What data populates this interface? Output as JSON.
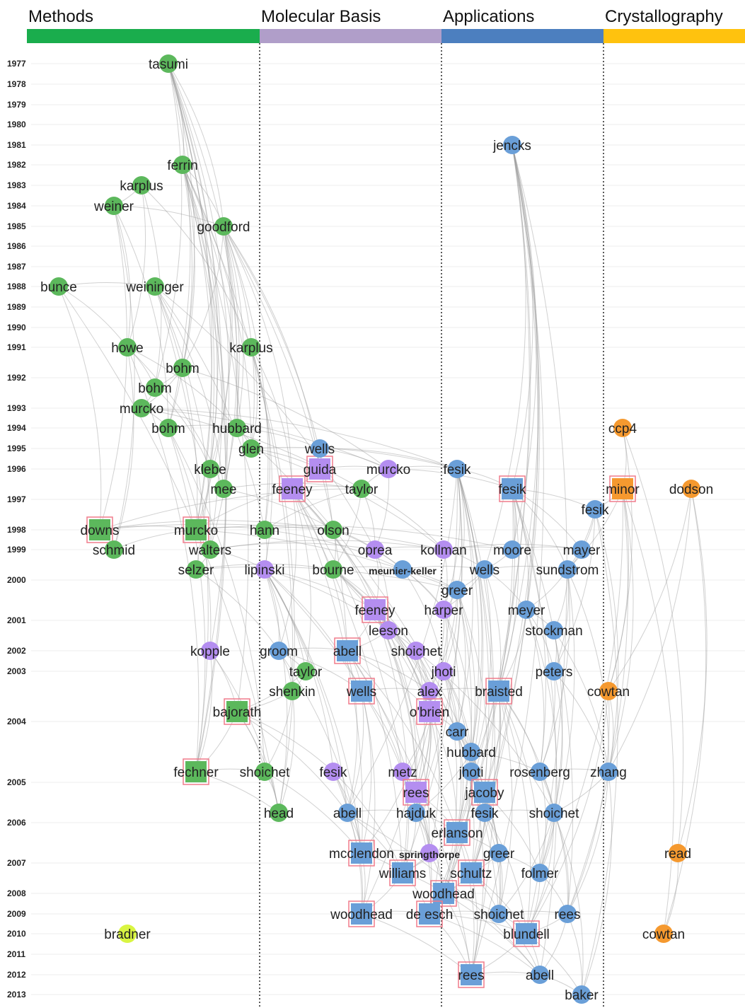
{
  "categories": [
    {
      "key": "methods",
      "label": "Methods",
      "color": "#1aad4d"
    },
    {
      "key": "molecular",
      "label": "Molecular Basis",
      "color": "#b09ec9"
    },
    {
      "key": "applications",
      "label": "Applications",
      "color": "#4c7fbf"
    },
    {
      "key": "crystallography",
      "label": "Crystallography",
      "color": "#ffc20e"
    }
  ],
  "years": [
    "1977",
    "1978",
    "1979",
    "1980",
    "1981",
    "1982",
    "1983",
    "1984",
    "1985",
    "1986",
    "1987",
    "1988",
    "1989",
    "1990",
    "1991",
    "1992",
    "1993",
    "1994",
    "1995",
    "1996",
    "1997",
    "1998",
    "1999",
    "2000",
    "2001",
    "2002",
    "2003",
    "2004",
    "2005",
    "2006",
    "2007",
    "2008",
    "2009",
    "2010",
    "2011",
    "2012",
    "2013"
  ],
  "node_colors": {
    "methods": "#5cb85c",
    "molecular": "#b48ef0",
    "applications": "#6a9fd8",
    "crystallography": "#f5992f",
    "outlier": "#d9f542",
    "highlight_border": "#f07c8c"
  },
  "nodes": [
    {
      "id": "tasumi",
      "label": "tasumi",
      "cat": "methods",
      "shape": "circle"
    },
    {
      "id": "ferrin",
      "label": "ferrin",
      "cat": "methods",
      "shape": "circle"
    },
    {
      "id": "karplus83",
      "label": "karplus",
      "cat": "methods",
      "shape": "circle"
    },
    {
      "id": "weiner",
      "label": "weiner",
      "cat": "methods",
      "shape": "circle"
    },
    {
      "id": "goodford",
      "label": "goodford",
      "cat": "methods",
      "shape": "circle"
    },
    {
      "id": "bunce",
      "label": "bunce",
      "cat": "methods",
      "shape": "circle"
    },
    {
      "id": "weininger",
      "label": "weininger",
      "cat": "methods",
      "shape": "circle"
    },
    {
      "id": "howe",
      "label": "howe",
      "cat": "methods",
      "shape": "circle"
    },
    {
      "id": "karplus91",
      "label": "karplus",
      "cat": "methods",
      "shape": "circle"
    },
    {
      "id": "bohm92a",
      "label": "bohm",
      "cat": "methods",
      "shape": "circle"
    },
    {
      "id": "bohm92b",
      "label": "bohm",
      "cat": "methods",
      "shape": "circle"
    },
    {
      "id": "murcko93",
      "label": "murcko",
      "cat": "methods",
      "shape": "circle"
    },
    {
      "id": "bohm94",
      "label": "bohm",
      "cat": "methods",
      "shape": "circle"
    },
    {
      "id": "hubbard94",
      "label": "hubbard",
      "cat": "methods",
      "shape": "circle"
    },
    {
      "id": "glen",
      "label": "glen",
      "cat": "methods",
      "shape": "circle"
    },
    {
      "id": "klebe",
      "label": "klebe",
      "cat": "methods",
      "shape": "circle"
    },
    {
      "id": "mee",
      "label": "mee",
      "cat": "methods",
      "shape": "circle"
    },
    {
      "id": "downs",
      "label": "downs",
      "cat": "methods",
      "shape": "square"
    },
    {
      "id": "schmid",
      "label": "schmid",
      "cat": "methods",
      "shape": "circle"
    },
    {
      "id": "murcko98",
      "label": "murcko",
      "cat": "methods",
      "shape": "square"
    },
    {
      "id": "walters",
      "label": "walters",
      "cat": "methods",
      "shape": "circle"
    },
    {
      "id": "hann",
      "label": "hann",
      "cat": "methods",
      "shape": "circle"
    },
    {
      "id": "selzer",
      "label": "selzer",
      "cat": "methods",
      "shape": "circle"
    },
    {
      "id": "taylor97",
      "label": "taylor",
      "cat": "methods",
      "shape": "circle"
    },
    {
      "id": "olson",
      "label": "olson",
      "cat": "methods",
      "shape": "circle"
    },
    {
      "id": "bourne",
      "label": "bourne",
      "cat": "methods",
      "shape": "circle"
    },
    {
      "id": "taylor03",
      "label": "taylor",
      "cat": "methods",
      "shape": "circle"
    },
    {
      "id": "shenkin",
      "label": "shenkin",
      "cat": "methods",
      "shape": "circle"
    },
    {
      "id": "bajorath",
      "label": "bajorath",
      "cat": "methods",
      "shape": "square"
    },
    {
      "id": "fechner",
      "label": "fechner",
      "cat": "methods",
      "shape": "square"
    },
    {
      "id": "shoichet05m",
      "label": "shoichet",
      "cat": "methods",
      "shape": "circle"
    },
    {
      "id": "head",
      "label": "head",
      "cat": "methods",
      "shape": "circle"
    },
    {
      "id": "bradner",
      "label": "bradner",
      "cat": "outlier",
      "shape": "circle"
    },
    {
      "id": "guida",
      "label": "guida",
      "cat": "molecular",
      "shape": "square"
    },
    {
      "id": "murcko96",
      "label": "murcko",
      "cat": "molecular",
      "shape": "circle"
    },
    {
      "id": "feeney97",
      "label": "feeney",
      "cat": "molecular",
      "shape": "square"
    },
    {
      "id": "oprea",
      "label": "oprea",
      "cat": "molecular",
      "shape": "circle"
    },
    {
      "id": "kollman",
      "label": "kollman",
      "cat": "molecular",
      "shape": "circle"
    },
    {
      "id": "lipinski",
      "label": "lipinski",
      "cat": "molecular",
      "shape": "circle"
    },
    {
      "id": "feeney01",
      "label": "feeney",
      "cat": "molecular",
      "shape": "square"
    },
    {
      "id": "harper",
      "label": "harper",
      "cat": "molecular",
      "shape": "circle"
    },
    {
      "id": "leeson",
      "label": "leeson",
      "cat": "molecular",
      "shape": "circle"
    },
    {
      "id": "kopple",
      "label": "kopple",
      "cat": "molecular",
      "shape": "circle"
    },
    {
      "id": "shoichet02",
      "label": "shoichet",
      "cat": "molecular",
      "shape": "circle"
    },
    {
      "id": "jhoti03",
      "label": "jhoti",
      "cat": "molecular",
      "shape": "circle"
    },
    {
      "id": "alex",
      "label": "alex",
      "cat": "molecular",
      "shape": "circle"
    },
    {
      "id": "obrien",
      "label": "o'brien",
      "cat": "molecular",
      "shape": "square"
    },
    {
      "id": "fesik05m",
      "label": "fesik",
      "cat": "molecular",
      "shape": "circle"
    },
    {
      "id": "metz",
      "label": "metz",
      "cat": "molecular",
      "shape": "circle"
    },
    {
      "id": "rees05",
      "label": "rees",
      "cat": "molecular",
      "shape": "square"
    },
    {
      "id": "springthorpe",
      "label": "springthorpe",
      "cat": "molecular",
      "shape": "circle",
      "small": true
    },
    {
      "id": "wells95",
      "label": "wells",
      "cat": "applications",
      "shape": "circle"
    },
    {
      "id": "jencks",
      "label": "jencks",
      "cat": "applications",
      "shape": "circle"
    },
    {
      "id": "fesik96",
      "label": "fesik",
      "cat": "applications",
      "shape": "circle"
    },
    {
      "id": "fesik97",
      "label": "fesik",
      "cat": "applications",
      "shape": "square"
    },
    {
      "id": "fesik97b",
      "label": "fesik",
      "cat": "applications",
      "shape": "circle"
    },
    {
      "id": "moore",
      "label": "moore",
      "cat": "applications",
      "shape": "circle"
    },
    {
      "id": "mayer",
      "label": "mayer",
      "cat": "applications",
      "shape": "circle"
    },
    {
      "id": "meunier",
      "label": "meunier-keller",
      "cat": "applications",
      "shape": "circle",
      "small": true
    },
    {
      "id": "wells99",
      "label": "wells",
      "cat": "applications",
      "shape": "circle"
    },
    {
      "id": "sundstrom",
      "label": "sundstrom",
      "cat": "applications",
      "shape": "circle"
    },
    {
      "id": "greer00",
      "label": "greer",
      "cat": "applications",
      "shape": "circle"
    },
    {
      "id": "meyer",
      "label": "meyer",
      "cat": "applications",
      "shape": "circle"
    },
    {
      "id": "stockman",
      "label": "stockman",
      "cat": "applications",
      "shape": "circle"
    },
    {
      "id": "groom",
      "label": "groom",
      "cat": "applications",
      "shape": "circle"
    },
    {
      "id": "abell02",
      "label": "abell",
      "cat": "applications",
      "shape": "square"
    },
    {
      "id": "peters",
      "label": "peters",
      "cat": "applications",
      "shape": "circle"
    },
    {
      "id": "wells03",
      "label": "wells",
      "cat": "applications",
      "shape": "square"
    },
    {
      "id": "braisted",
      "label": "braisted",
      "cat": "applications",
      "shape": "square"
    },
    {
      "id": "carr",
      "label": "carr",
      "cat": "applications",
      "shape": "circle"
    },
    {
      "id": "hubbard04",
      "label": "hubbard",
      "cat": "applications",
      "shape": "circle"
    },
    {
      "id": "jhoti05",
      "label": "jhoti",
      "cat": "applications",
      "shape": "circle"
    },
    {
      "id": "rosenberg",
      "label": "rosenberg",
      "cat": "applications",
      "shape": "circle"
    },
    {
      "id": "zhang",
      "label": "zhang",
      "cat": "applications",
      "shape": "circle"
    },
    {
      "id": "jacoby",
      "label": "jacoby",
      "cat": "applications",
      "shape": "square"
    },
    {
      "id": "abell06",
      "label": "abell",
      "cat": "applications",
      "shape": "circle"
    },
    {
      "id": "hajduk",
      "label": "hajduk",
      "cat": "applications",
      "shape": "circle"
    },
    {
      "id": "fesik06",
      "label": "fesik",
      "cat": "applications",
      "shape": "circle"
    },
    {
      "id": "shoichet06",
      "label": "shoichet",
      "cat": "applications",
      "shape": "circle"
    },
    {
      "id": "erlanson",
      "label": "erlanson",
      "cat": "applications",
      "shape": "square"
    },
    {
      "id": "mcclendon",
      "label": "mcclendon",
      "cat": "applications",
      "shape": "square"
    },
    {
      "id": "greer07",
      "label": "greer",
      "cat": "applications",
      "shape": "circle"
    },
    {
      "id": "williams",
      "label": "williams",
      "cat": "applications",
      "shape": "square"
    },
    {
      "id": "schultz",
      "label": "schultz",
      "cat": "applications",
      "shape": "square"
    },
    {
      "id": "folmer",
      "label": "folmer",
      "cat": "applications",
      "shape": "circle"
    },
    {
      "id": "woodhead08",
      "label": "woodhead",
      "cat": "applications",
      "shape": "square"
    },
    {
      "id": "woodhead09",
      "label": "woodhead",
      "cat": "applications",
      "shape": "square"
    },
    {
      "id": "deesch",
      "label": "de esch",
      "cat": "applications",
      "shape": "square"
    },
    {
      "id": "shoichet09",
      "label": "shoichet",
      "cat": "applications",
      "shape": "circle"
    },
    {
      "id": "rees09",
      "label": "rees",
      "cat": "applications",
      "shape": "circle"
    },
    {
      "id": "blundell",
      "label": "blundell",
      "cat": "applications",
      "shape": "square"
    },
    {
      "id": "rees12",
      "label": "rees",
      "cat": "applications",
      "shape": "square"
    },
    {
      "id": "abell12",
      "label": "abell",
      "cat": "applications",
      "shape": "circle"
    },
    {
      "id": "baker",
      "label": "baker",
      "cat": "applications",
      "shape": "circle"
    },
    {
      "id": "ccp4",
      "label": "ccp4",
      "cat": "crystallography",
      "shape": "circle"
    },
    {
      "id": "minor",
      "label": "minor",
      "cat": "crystallography",
      "shape": "square"
    },
    {
      "id": "dodson",
      "label": "dodson",
      "cat": "crystallography",
      "shape": "circle"
    },
    {
      "id": "cowtan03",
      "label": "cowtan",
      "cat": "crystallography",
      "shape": "circle"
    },
    {
      "id": "read",
      "label": "read",
      "cat": "crystallography",
      "shape": "circle"
    },
    {
      "id": "cowtan10",
      "label": "cowtan",
      "cat": "crystallography",
      "shape": "circle"
    }
  ]
}
